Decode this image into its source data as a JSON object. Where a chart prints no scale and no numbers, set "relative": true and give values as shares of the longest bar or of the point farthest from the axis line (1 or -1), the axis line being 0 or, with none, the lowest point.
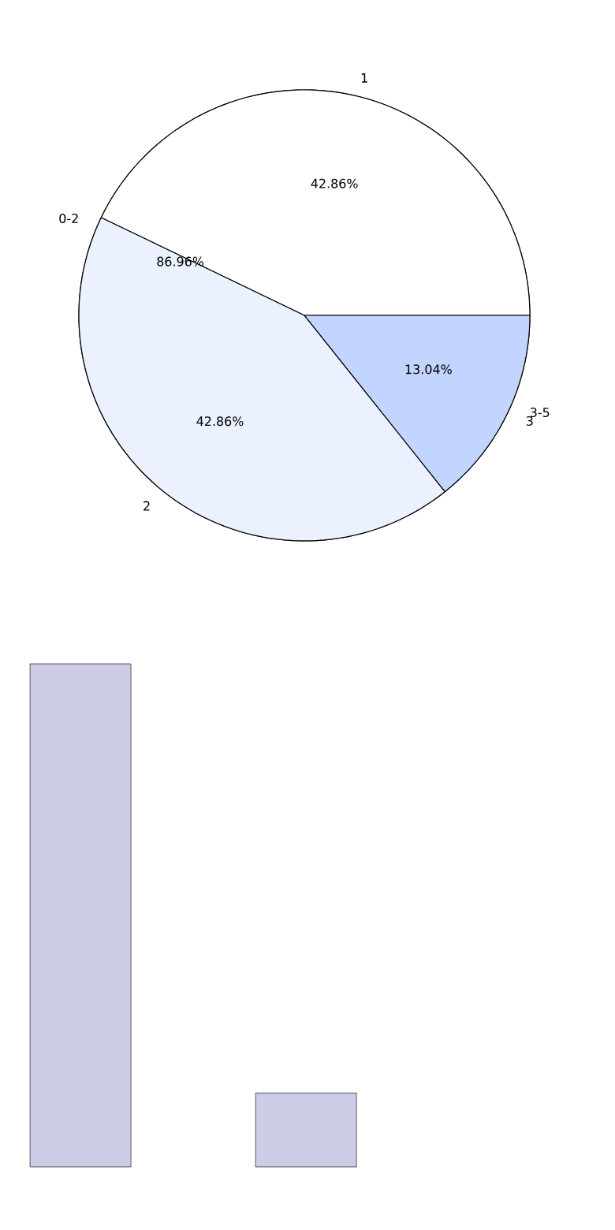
{
  "chart_data": [
    {
      "type": "pie",
      "categories": [
        "1",
        "2",
        "3"
      ],
      "values": [
        42.86,
        42.86,
        14.28
      ],
      "colors": [
        "#ffffff",
        "#ebf1fe",
        "#c3d5fe"
      ],
      "value_labels": [
        "42.86%",
        "42.86%",
        null
      ]
    },
    {
      "type": "pie",
      "categories": [
        "0-2",
        "3-5"
      ],
      "values": [
        86.96,
        13.04
      ],
      "colors": [
        "#ebf1fe",
        "#c3d5fe"
      ],
      "value_labels": [
        "86.96%",
        "13.04%"
      ]
    },
    {
      "type": "bar",
      "categories": [
        null,
        null
      ],
      "values": [
        1,
        0.147
      ],
      "color": "#ccccE6",
      "relative": true
    }
  ]
}
